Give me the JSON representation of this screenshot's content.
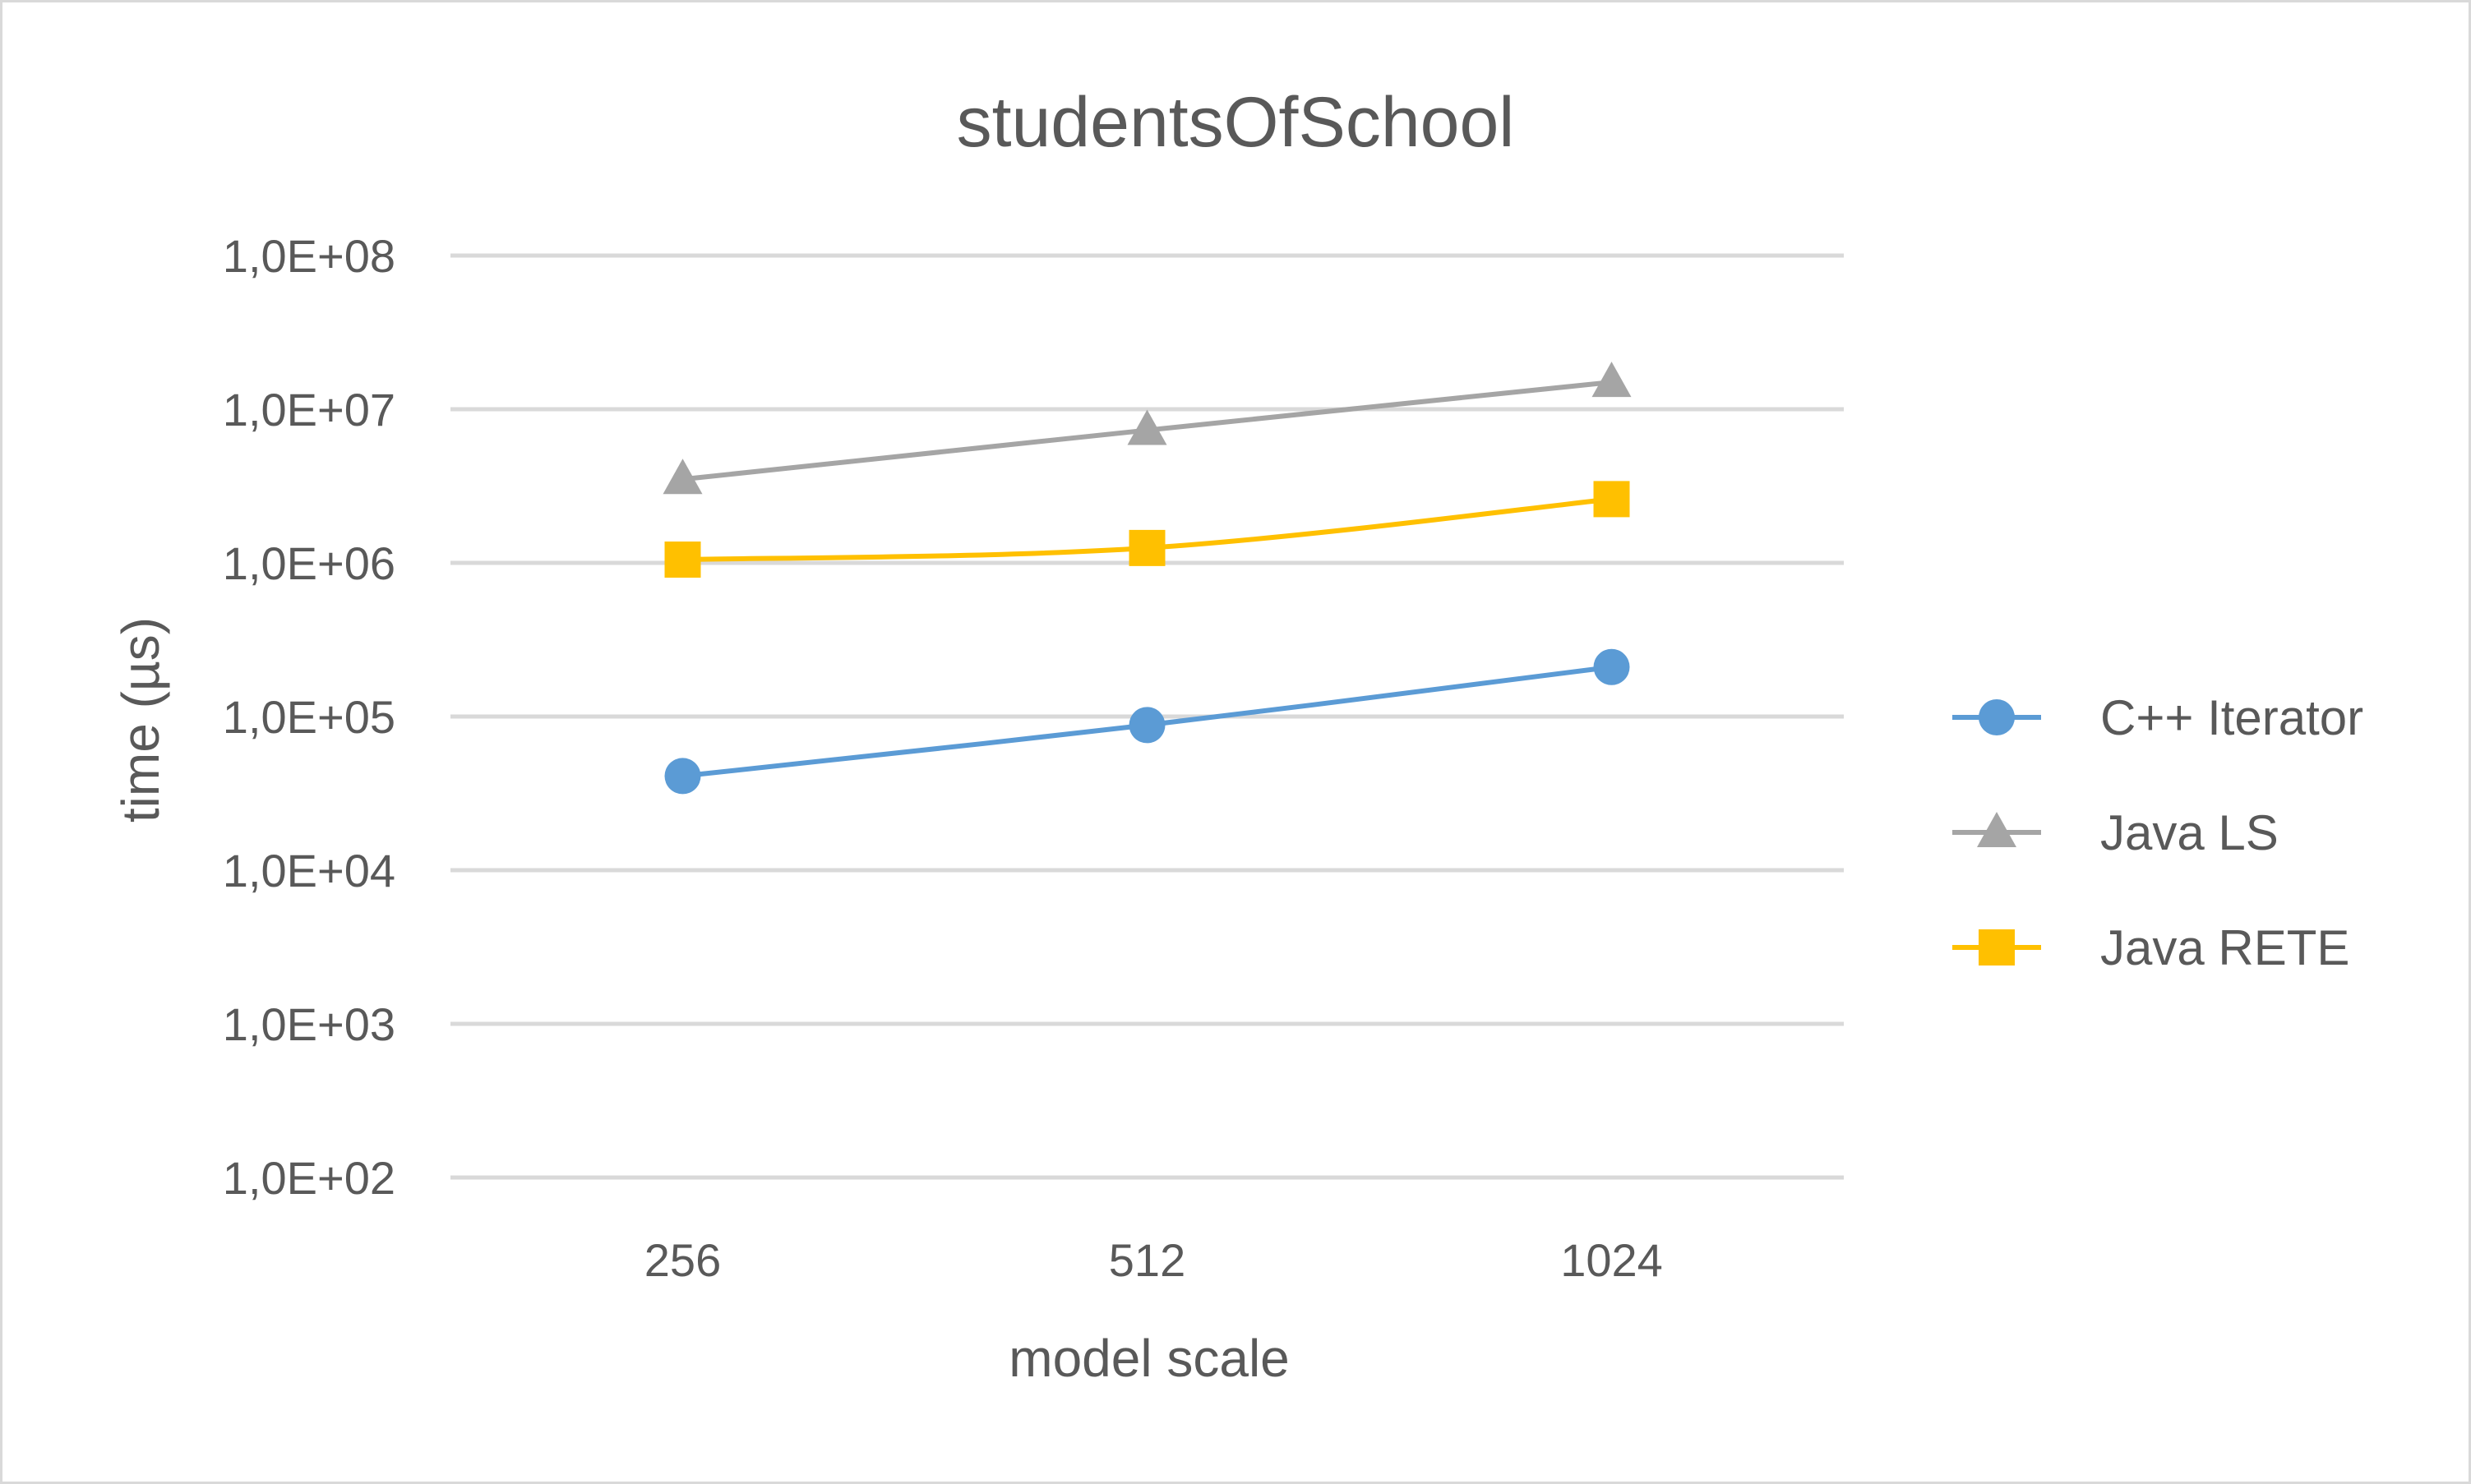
{
  "chart_data": {
    "type": "line",
    "title": "studentsOfSchool",
    "xlabel": "model scale",
    "ylabel": "time (µs)",
    "y_scale": "log",
    "ylim": [
      100,
      100000000
    ],
    "yticks": [
      100,
      1000,
      10000,
      100000,
      1000000,
      10000000,
      100000000
    ],
    "ytick_labels": [
      "1,0E+02",
      "1,0E+03",
      "1,0E+04",
      "1,0E+05",
      "1,0E+06",
      "1,0E+07",
      "1,0E+08"
    ],
    "categories": [
      "256",
      "512",
      "1024"
    ],
    "grid": true,
    "legend_position": "right",
    "series": [
      {
        "name": "C++ Iterator",
        "color": "#5b9bd5",
        "marker": "circle",
        "values": [
          41000,
          88000,
          210000
        ]
      },
      {
        "name": "Java LS",
        "color": "#a5a5a5",
        "marker": "triangle",
        "values": [
          3500000,
          7300000,
          15000000
        ]
      },
      {
        "name": "Java RETE",
        "color": "#ffc000",
        "marker": "square",
        "values": [
          1050000,
          1250000,
          2600000
        ]
      }
    ]
  }
}
